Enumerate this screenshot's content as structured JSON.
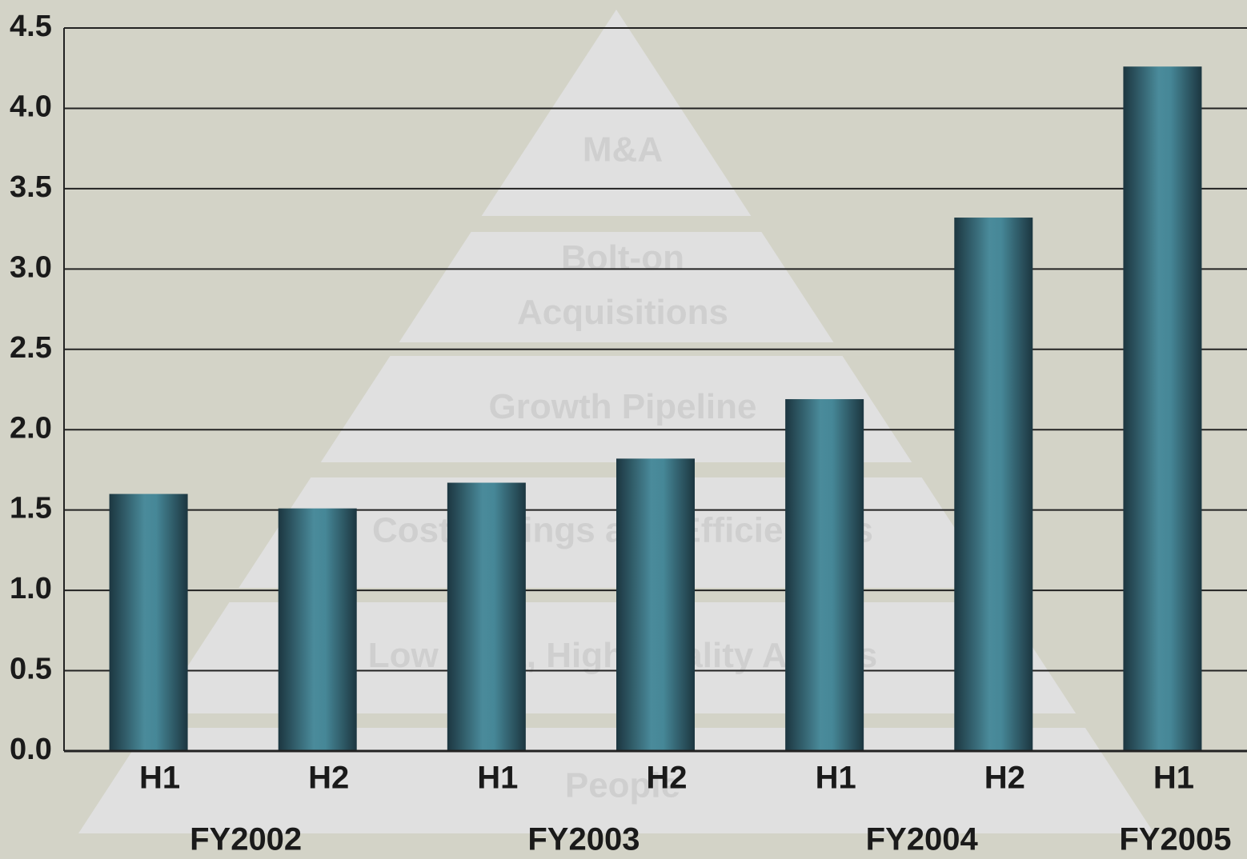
{
  "chart_data": {
    "type": "bar",
    "groups": [
      {
        "name": "FY2002",
        "categories": [
          "H1",
          "H2"
        ]
      },
      {
        "name": "FY2003",
        "categories": [
          "H1",
          "H2"
        ]
      },
      {
        "name": "FY2004",
        "categories": [
          "H1",
          "H2"
        ]
      },
      {
        "name": "FY2005",
        "categories": [
          "H1"
        ]
      }
    ],
    "values": [
      1.6,
      1.51,
      1.67,
      1.82,
      2.19,
      3.32,
      4.26
    ],
    "color": "#4a8b9b",
    "ylim": [
      0,
      4.5
    ],
    "yticks": [
      {
        "value": 0,
        "label": "0.0"
      },
      0.5,
      {
        "value": 1,
        "label": "1.0"
      },
      1.5,
      {
        "value": 2,
        "label": "2.0"
      },
      2.5,
      {
        "value": 3,
        "label": "3.0"
      },
      3.5,
      {
        "value": 4,
        "label": "4.0"
      },
      4.5
    ],
    "grid": true,
    "background_pyramid": [
      "M&A",
      "Bolt-on Acquisitions",
      "Growth Pipeline",
      "Cost Savings and Efficiencies",
      "Low Cost, High Quality Assets",
      "People"
    ]
  }
}
